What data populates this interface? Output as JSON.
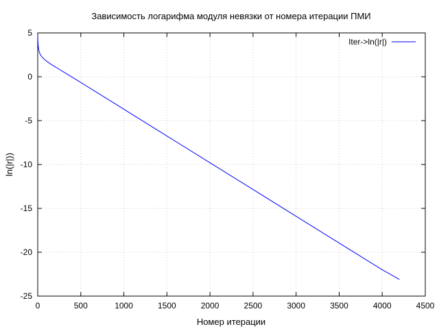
{
  "chart_data": {
    "type": "line",
    "title": "Зависимость логарифма модуля невязки от номера итерации ПМИ",
    "xlabel": "Номер итерации",
    "ylabel": "ln(|r|))",
    "xlim": [
      0,
      4500
    ],
    "ylim": [
      -25,
      5
    ],
    "xticks": [
      0,
      500,
      1000,
      1500,
      2000,
      2500,
      3000,
      3500,
      4000,
      4500
    ],
    "yticks": [
      -25,
      -20,
      -15,
      -10,
      -5,
      0,
      5
    ],
    "grid": true,
    "legend_position": "top-right",
    "series": [
      {
        "name": "Iter->ln(|r|)",
        "color": "#0000ff",
        "points": [
          [
            0,
            4.6
          ],
          [
            2,
            4.1
          ],
          [
            5,
            3.6
          ],
          [
            10,
            3.15
          ],
          [
            20,
            2.75
          ],
          [
            35,
            2.45
          ],
          [
            50,
            2.25
          ],
          [
            75,
            2.0
          ],
          [
            100,
            1.8
          ],
          [
            150,
            1.45
          ],
          [
            200,
            1.15
          ],
          [
            250,
            0.85
          ],
          [
            300,
            0.55
          ],
          [
            500,
            -0.65
          ],
          [
            1000,
            -3.7
          ],
          [
            1500,
            -6.75
          ],
          [
            2000,
            -9.8
          ],
          [
            2500,
            -12.85
          ],
          [
            3000,
            -15.9
          ],
          [
            3500,
            -18.95
          ],
          [
            4000,
            -22.0
          ],
          [
            4200,
            -23.1
          ]
        ]
      }
    ]
  }
}
